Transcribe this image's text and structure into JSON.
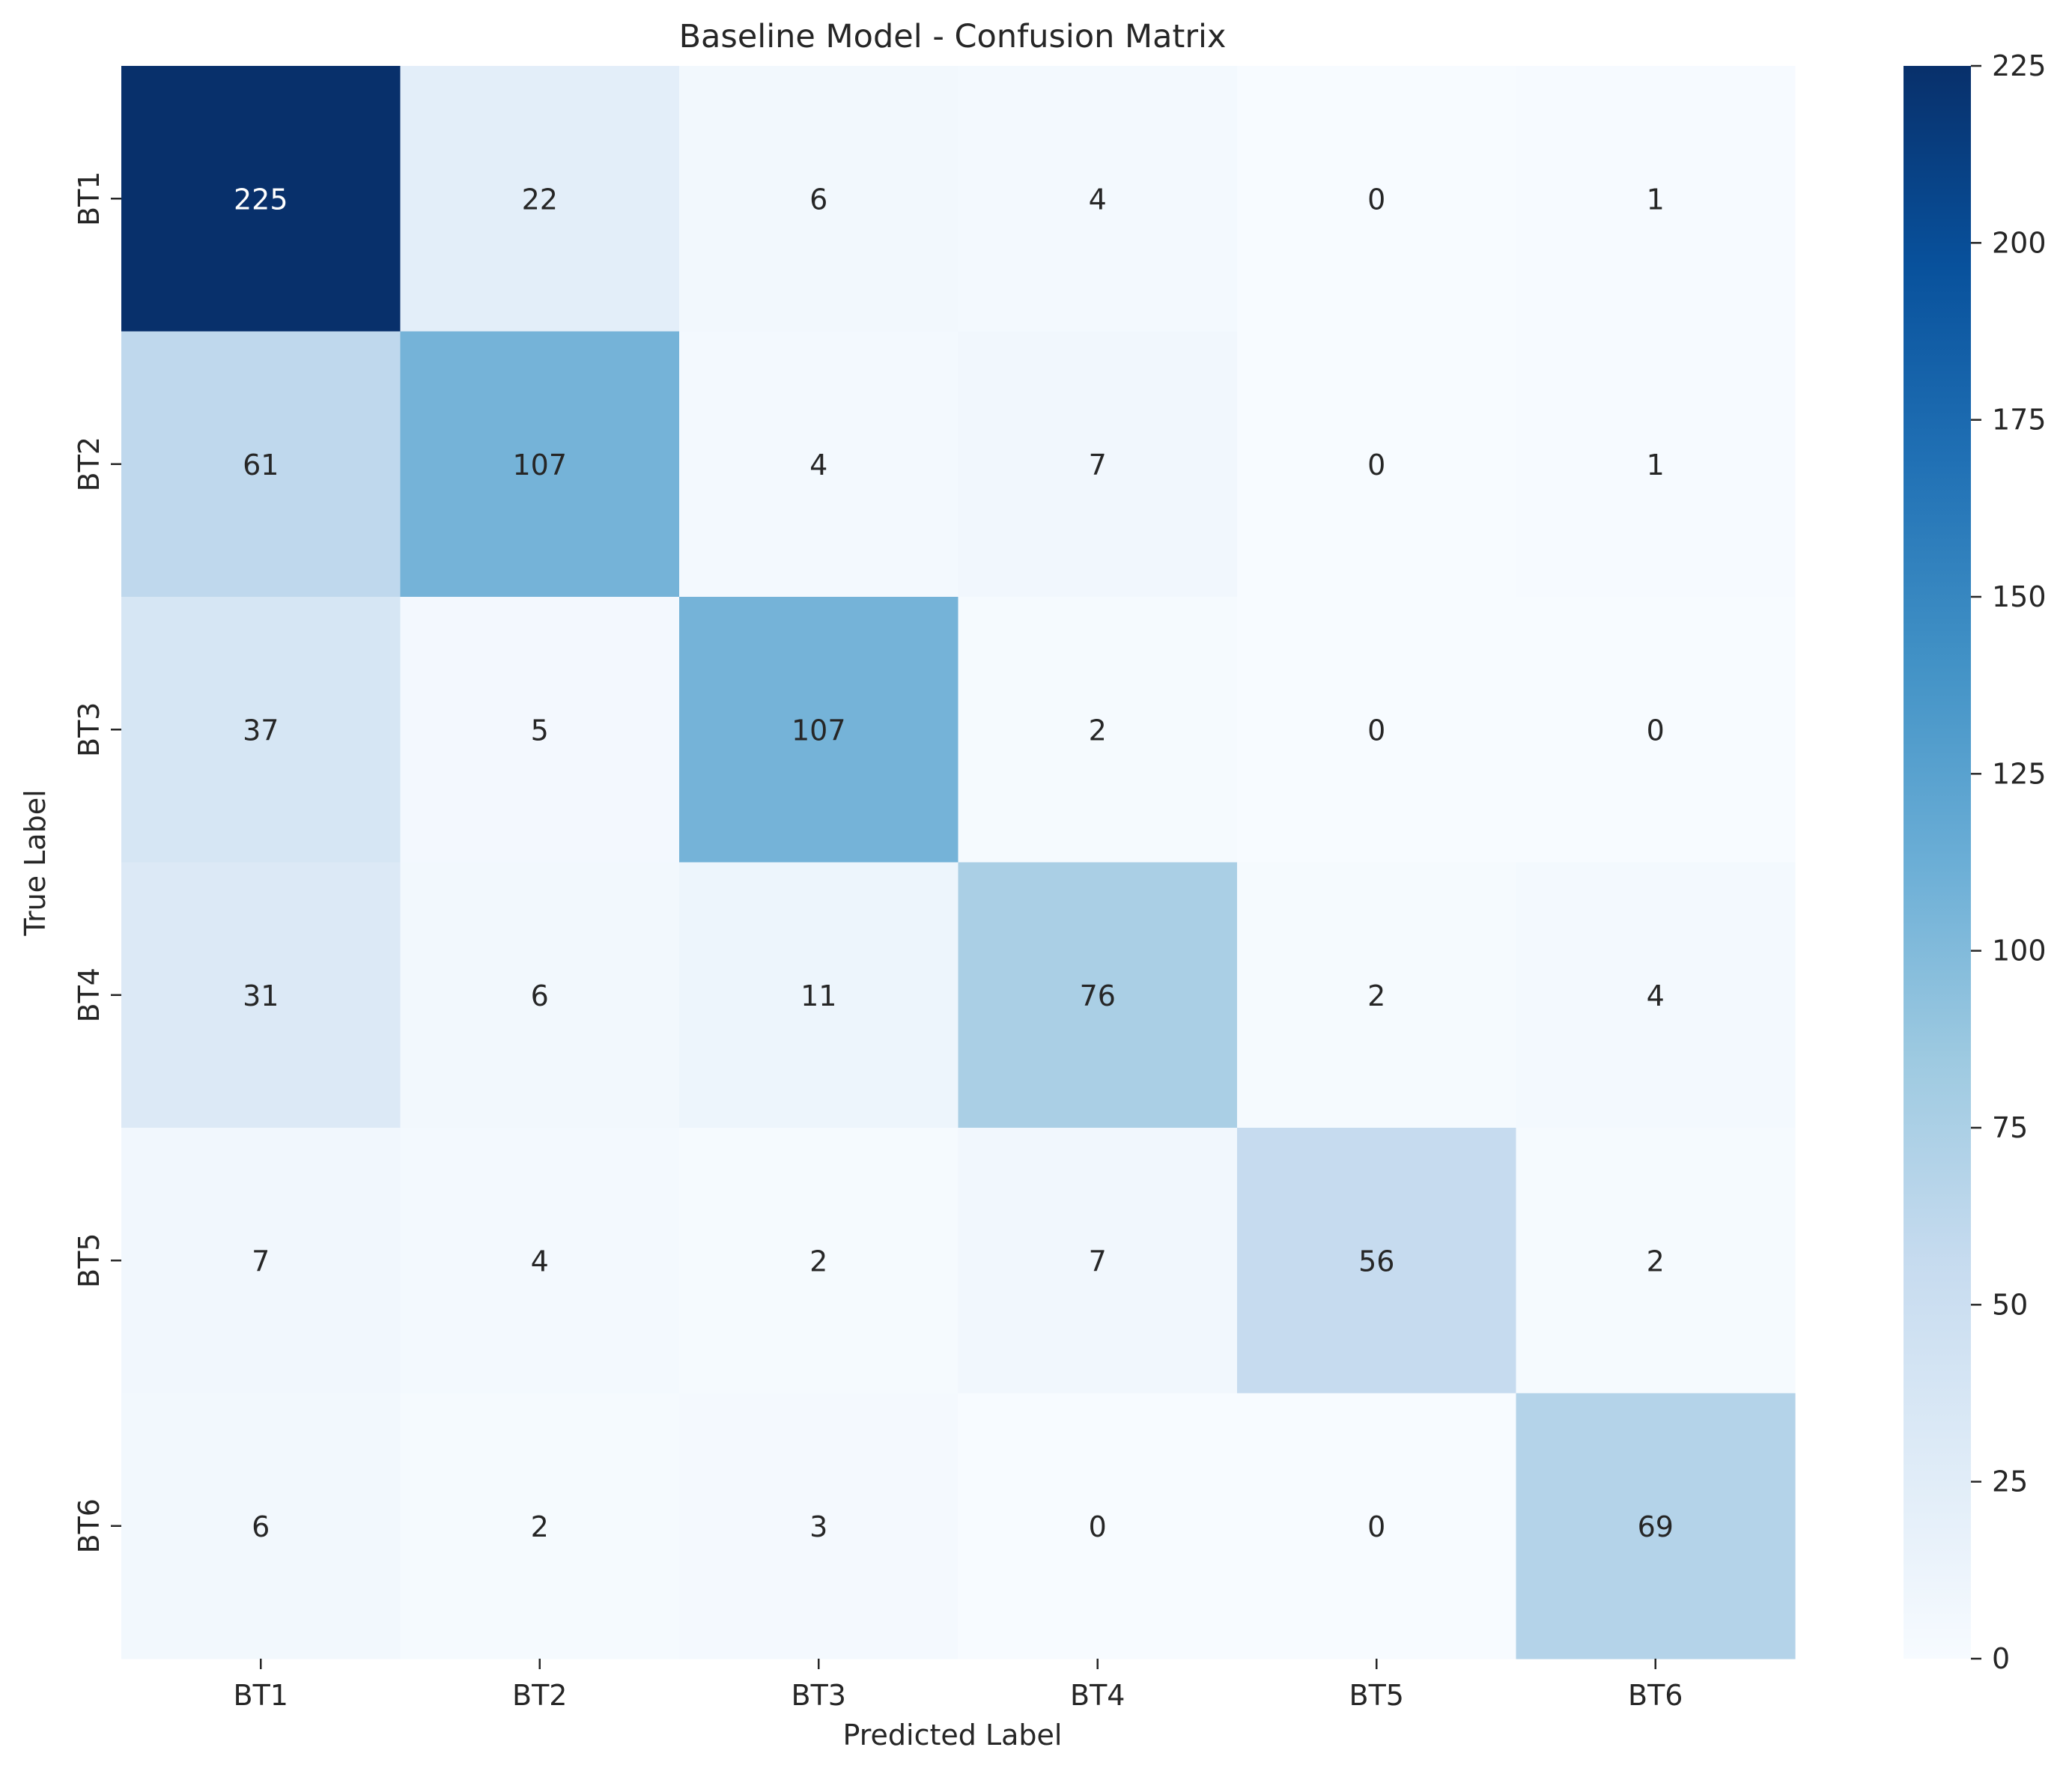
{
  "chart_data": {
    "type": "heatmap",
    "title": "Baseline Model - Confusion Matrix",
    "xlabel": "Predicted Label",
    "ylabel": "True Label",
    "x_categories": [
      "BT1",
      "BT2",
      "BT3",
      "BT4",
      "BT5",
      "BT6"
    ],
    "y_categories": [
      "BT1",
      "BT2",
      "BT3",
      "BT4",
      "BT5",
      "BT6"
    ],
    "matrix": [
      [
        225,
        22,
        6,
        4,
        0,
        1
      ],
      [
        61,
        107,
        4,
        7,
        0,
        1
      ],
      [
        37,
        5,
        107,
        2,
        0,
        0
      ],
      [
        31,
        6,
        11,
        76,
        2,
        4
      ],
      [
        7,
        4,
        2,
        7,
        56,
        2
      ],
      [
        6,
        2,
        3,
        0,
        0,
        69
      ]
    ],
    "colormap": "Blues",
    "colorbar": {
      "range": [
        0,
        225
      ],
      "ticks": [
        0,
        25,
        50,
        75,
        100,
        125,
        150,
        175,
        200,
        225
      ]
    },
    "annotations_shown": true,
    "grid": false
  }
}
